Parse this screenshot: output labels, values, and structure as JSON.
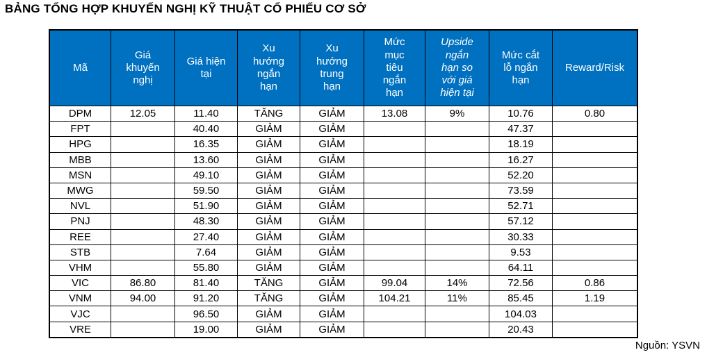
{
  "page": {
    "title": "BẢNG TỔNG HỢP KHUYẾN NGHỊ KỸ THUẬT CỔ PHIẾU CƠ SỞ",
    "source": "Nguồn: YSVN"
  },
  "colors": {
    "header_bg": "#0070C0",
    "header_text": "#FFFFFF",
    "body_text": "#000000",
    "border": "#000000"
  },
  "table": {
    "columns": [
      {
        "key": "ma",
        "label": "Mã",
        "italic": false
      },
      {
        "key": "gia-khuyen-nghi",
        "label": "Giá\nkhuyến\nnghị",
        "italic": false
      },
      {
        "key": "gia-hien-tai",
        "label": "Giá hiện\ntại",
        "italic": false
      },
      {
        "key": "xu-huong-ngan-han",
        "label": "Xu\nhướng\nngắn\nhạn",
        "italic": false
      },
      {
        "key": "xu-huong-trung-han",
        "label": "Xu\nhướng\ntrung\nhạn",
        "italic": false
      },
      {
        "key": "muc-muc-tieu-ngan-han",
        "label": "Mức\nmục\ntiêu\nngắn\nhạn",
        "italic": false
      },
      {
        "key": "upside-ngan-han-so-voi-gia-hien-tai",
        "label": "Upside\nngắn\nhạn so\nvới giá\nhiện tại",
        "italic": true
      },
      {
        "key": "muc-cat-lo-ngan-han",
        "label": "Mức cắt\nlỗ ngắn\nhạn",
        "italic": false
      },
      {
        "key": "reward-risk",
        "label": "Reward/Risk",
        "italic": false
      }
    ],
    "rows": [
      [
        "DPM",
        "12.05",
        "11.40",
        "TĂNG",
        "GIẢM",
        "13.08",
        "9%",
        "10.76",
        "0.80"
      ],
      [
        "FPT",
        "",
        "40.40",
        "GIẢM",
        "GIẢM",
        "",
        "",
        "47.37",
        ""
      ],
      [
        "HPG",
        "",
        "16.35",
        "GIẢM",
        "GIẢM",
        "",
        "",
        "18.19",
        ""
      ],
      [
        "MBB",
        "",
        "13.60",
        "GIẢM",
        "GIẢM",
        "",
        "",
        "16.27",
        ""
      ],
      [
        "MSN",
        "",
        "49.10",
        "GIẢM",
        "GIẢM",
        "",
        "",
        "52.20",
        ""
      ],
      [
        "MWG",
        "",
        "59.50",
        "GIẢM",
        "GIẢM",
        "",
        "",
        "73.59",
        ""
      ],
      [
        "NVL",
        "",
        "51.90",
        "GIẢM",
        "GIẢM",
        "",
        "",
        "52.71",
        ""
      ],
      [
        "PNJ",
        "",
        "48.30",
        "GIẢM",
        "GIẢM",
        "",
        "",
        "57.12",
        ""
      ],
      [
        "REE",
        "",
        "27.40",
        "GIẢM",
        "GIẢM",
        "",
        "",
        "30.33",
        ""
      ],
      [
        "STB",
        "",
        "7.64",
        "GIẢM",
        "GIẢM",
        "",
        "",
        "9.53",
        ""
      ],
      [
        "VHM",
        "",
        "55.80",
        "GIẢM",
        "GIẢM",
        "",
        "",
        "64.11",
        ""
      ],
      [
        "VIC",
        "86.80",
        "81.40",
        "TĂNG",
        "GIẢM",
        "99.04",
        "14%",
        "72.56",
        "0.86"
      ],
      [
        "VNM",
        "94.00",
        "91.20",
        "TĂNG",
        "GIẢM",
        "104.21",
        "11%",
        "85.45",
        "1.19"
      ],
      [
        "VJC",
        "",
        "96.50",
        "GIẢM",
        "GIẢM",
        "",
        "",
        "104.03",
        ""
      ],
      [
        "VRE",
        "",
        "19.00",
        "GIẢM",
        "GIẢM",
        "",
        "",
        "20.43",
        ""
      ]
    ]
  }
}
